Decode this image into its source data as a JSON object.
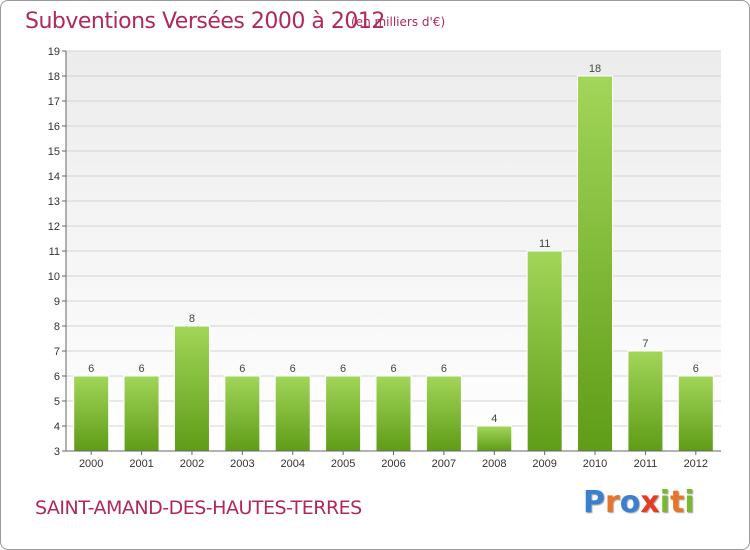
{
  "chart_data": {
    "type": "bar",
    "title": "Subventions Versées 2000 à 2012",
    "subtitle": "(en milliers d'€)",
    "categories": [
      "2000",
      "2001",
      "2002",
      "2003",
      "2004",
      "2005",
      "2006",
      "2007",
      "2008",
      "2009",
      "2010",
      "2011",
      "2012"
    ],
    "values": [
      6,
      6,
      8,
      6,
      6,
      6,
      6,
      6,
      4,
      11,
      18,
      7,
      6
    ],
    "ylim": [
      3,
      19
    ],
    "yticks": [
      3,
      4,
      5,
      6,
      7,
      8,
      9,
      10,
      11,
      12,
      13,
      14,
      15,
      16,
      17,
      18,
      19
    ],
    "grid": true,
    "bar_color": "#7fb92e",
    "xlabel": "",
    "ylabel": ""
  },
  "footer": {
    "commune": "SAINT-AMAND-DES-HAUTES-TERRES",
    "logo_text": "Proxiti"
  },
  "colors": {
    "title": "#b0285e",
    "bar_light": "#9fd255",
    "bar_dark": "#5e9a16"
  }
}
